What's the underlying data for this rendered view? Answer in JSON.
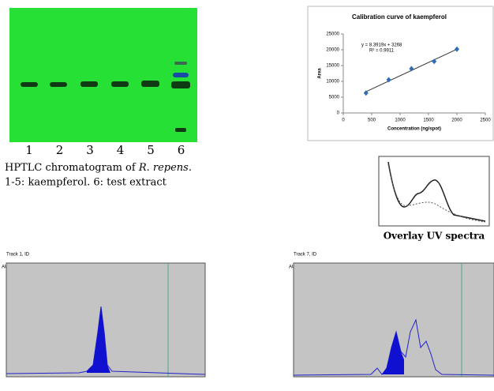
{
  "tlc": {
    "lanes": [
      "1",
      "2",
      "3",
      "4",
      "5",
      "6"
    ],
    "caption": {
      "line1": "HPTLC chromatogram of ",
      "species": "R. repens.",
      "line2": "1-5: kaempferol. 6: test extract"
    }
  },
  "chart_data": {
    "type": "scatter",
    "title": "Calibration curve of kaempferol",
    "x_label": "Concentration (ng/spot)",
    "y_label": "Area",
    "annotations": [
      "y = 8.3919x + 3268",
      "R² = 0.9911"
    ],
    "x": [
      400,
      800,
      1200,
      1600,
      2000
    ],
    "values": [
      6300,
      10500,
      14000,
      16300,
      20200
    ],
    "color": "#2e6db4",
    "xlim": [
      0,
      2500
    ],
    "xticks": [
      0,
      500,
      1000,
      1500,
      2000,
      2500
    ],
    "ylim": [
      0,
      25000
    ],
    "yticks": [
      0,
      5000,
      10000,
      15000,
      20000,
      25000
    ],
    "grid": false
  },
  "uv": {
    "caption": "Overlay UV spectra"
  },
  "densitograms": [
    {
      "title": "Track 1, ID",
      "y_label": "AU"
    },
    {
      "title": "Track 7, ID",
      "y_label": "AU"
    }
  ]
}
